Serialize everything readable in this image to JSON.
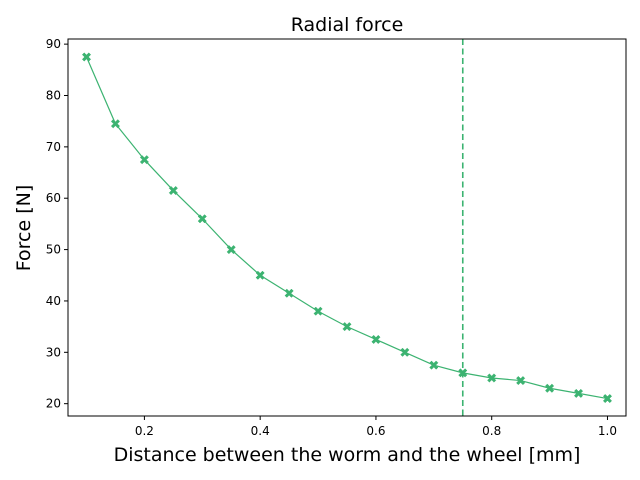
{
  "chart_data": {
    "type": "line",
    "title": "Radial force",
    "xlabel": "Distance between the worm and the wheel [mm]",
    "ylabel": "Force [N]",
    "xlim": [
      0.068,
      1.032
    ],
    "ylim": [
      17.6,
      91.0
    ],
    "xticks": [
      0.2,
      0.4,
      0.6,
      0.8,
      1.0
    ],
    "xtick_labels": [
      "0.2",
      "0.4",
      "0.6",
      "0.8",
      "1.0"
    ],
    "yticks": [
      20,
      30,
      40,
      50,
      60,
      70,
      80,
      90
    ],
    "ytick_labels": [
      "20",
      "30",
      "40",
      "50",
      "60",
      "70",
      "80",
      "90"
    ],
    "grid": false,
    "series": [
      {
        "color": "#3cb371",
        "marker": "X",
        "x": [
          0.1,
          0.15,
          0.2,
          0.25,
          0.3,
          0.35,
          0.4,
          0.45,
          0.5,
          0.55,
          0.6,
          0.65,
          0.7,
          0.75,
          0.8,
          0.85,
          0.9,
          0.95,
          1.0
        ],
        "y": [
          87.5,
          74.5,
          67.5,
          61.5,
          56.0,
          50.0,
          45.0,
          41.5,
          38.0,
          35.0,
          32.5,
          30.0,
          27.5,
          26.0,
          25.0,
          24.5,
          23.0,
          22.0,
          21.0
        ]
      }
    ],
    "vline": {
      "x": 0.75,
      "style": "dashed",
      "color": "#3cb371"
    }
  }
}
